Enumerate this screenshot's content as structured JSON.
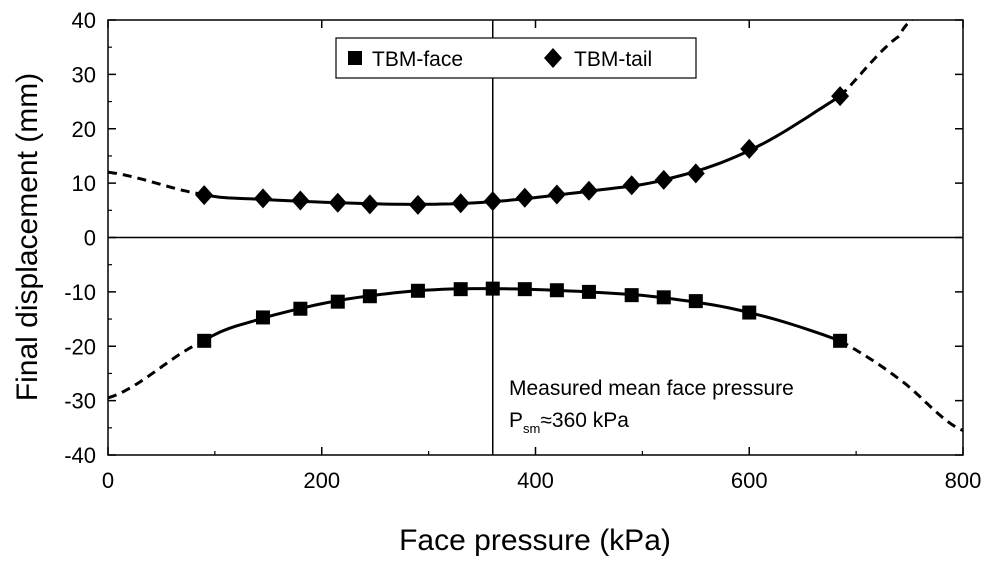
{
  "chart_data": {
    "type": "scatter",
    "title": "",
    "xlabel": "Face pressure (kPa)",
    "ylabel": "Final displacement (mm)",
    "xlim": [
      0,
      800
    ],
    "ylim": [
      -40,
      40
    ],
    "xticks": [
      0,
      200,
      400,
      600,
      800
    ],
    "yticks": [
      -40,
      -30,
      -20,
      -10,
      0,
      10,
      20,
      30,
      40
    ],
    "grid": false,
    "legend": "top-center",
    "series": [
      {
        "name": "TBM-face",
        "marker": "square",
        "x": [
          90,
          145,
          180,
          215,
          245,
          290,
          330,
          360,
          390,
          420,
          450,
          490,
          520,
          550,
          600,
          685
        ],
        "y": [
          -19,
          -14.7,
          -13.1,
          -11.8,
          -10.8,
          -9.8,
          -9.5,
          -9.4,
          -9.5,
          -9.7,
          -10.0,
          -10.6,
          -11.0,
          -11.7,
          -13.8,
          -19.0
        ]
      },
      {
        "name": "TBM-tail",
        "marker": "diamond",
        "x": [
          90,
          145,
          180,
          215,
          245,
          290,
          330,
          360,
          390,
          420,
          450,
          490,
          520,
          550,
          600,
          685
        ],
        "y": [
          7.8,
          7.2,
          6.8,
          6.4,
          6.1,
          6.0,
          6.3,
          6.7,
          7.3,
          7.9,
          8.6,
          9.6,
          10.6,
          11.8,
          16.3,
          26.0
        ]
      }
    ],
    "fit_curves": [
      {
        "series": "TBM-face",
        "solid_range": [
          90,
          685
        ],
        "dashed_ranges": [
          [
            0,
            90
          ],
          [
            685,
            800
          ]
        ],
        "x": [
          0,
          90,
          145,
          215,
          290,
          360,
          450,
          520,
          600,
          685,
          740,
          800
        ],
        "y": [
          -29.5,
          -19,
          -14.8,
          -11.6,
          -9.8,
          -9.4,
          -10.0,
          -11.1,
          -13.8,
          -19.0,
          -26.0,
          -35.5
        ]
      },
      {
        "series": "TBM-tail",
        "solid_range": [
          90,
          685
        ],
        "dashed_ranges": [
          [
            0,
            90
          ],
          [
            685,
            800
          ]
        ],
        "x": [
          0,
          90,
          145,
          215,
          290,
          360,
          450,
          520,
          600,
          685,
          740,
          760
        ],
        "y": [
          12.0,
          7.9,
          7.0,
          6.4,
          6.1,
          6.6,
          8.5,
          10.6,
          16.0,
          26.0,
          37.0,
          41.0
        ]
      }
    ],
    "reference_line": {
      "x": 360
    },
    "annotation": {
      "line1": "Measured mean face pressure",
      "prefix": "P",
      "subscript": "sm",
      "suffix": "≈360 kPa"
    }
  }
}
